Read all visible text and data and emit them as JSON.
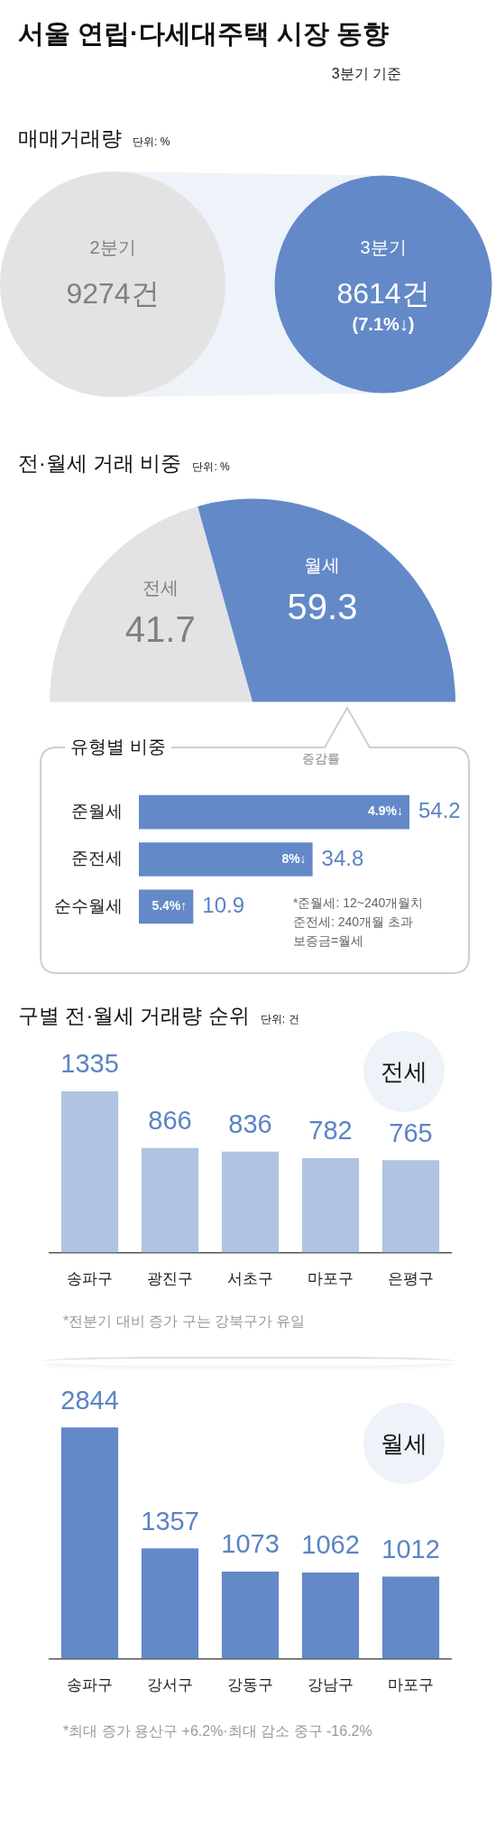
{
  "chart_data": [
    {
      "type": "other",
      "title": "서울 연립·다세대주택 시장 동향",
      "subtitle": "3분기 기준"
    },
    {
      "type": "other",
      "title": "매매거래량",
      "subtitle": "단위: %",
      "categories": [
        "2분기",
        "3분기"
      ],
      "values": [
        9274,
        8614
      ],
      "value_labels": [
        "9274건",
        "8614건"
      ],
      "colors": [
        "#e3e3e3",
        "#6389c8"
      ],
      "annotations": [
        {
          "text": "(7.1%↓)",
          "x": "3분기"
        }
      ]
    },
    {
      "type": "pie",
      "title": "전·월세 거래 비중",
      "subtitle": "단위: %",
      "categories": [
        "전세",
        "월세"
      ],
      "values": [
        41.7,
        59.3
      ],
      "colors": [
        "#e3e3e3",
        "#6389c8"
      ],
      "data_labels": true
    },
    {
      "type": "bar",
      "orientation": "horizontal",
      "title": "유형별 비중",
      "categories": [
        "준월세",
        "준전세",
        "순수월세"
      ],
      "values": [
        54.2,
        34.8,
        10.9
      ],
      "color": "#6389c8",
      "data_labels": true,
      "tick_labels": "y",
      "annotations": [
        "증감률",
        {
          "text": "4.9%↓",
          "y": "준월세"
        },
        {
          "text": "8%↓",
          "y": "준전세"
        },
        {
          "text": "5.4%↑",
          "y": "순수월세"
        },
        "*준월세: 12~240개월치\n준전세: 240개월 초과\n보증금=월세"
      ]
    },
    {
      "type": "bar",
      "title": "구별 전·월세 거래량 순위",
      "subtitle": "단위: 건",
      "categories": [
        "송파구",
        "광진구",
        "서초구",
        "마포구",
        "은평구"
      ],
      "series": [
        {
          "name": "전세",
          "color": "#afc3e3",
          "values": [
            1335,
            866,
            836,
            782,
            765
          ]
        }
      ],
      "legend": "top right",
      "data_labels": true,
      "tick_labels": "x",
      "annotations": [
        "*전분기 대비 증가 구는 강북구가 유일"
      ]
    },
    {
      "type": "bar",
      "categories": [
        "송파구",
        "강서구",
        "강동구",
        "강남구",
        "마포구"
      ],
      "series": [
        {
          "name": "월세",
          "color": "#6389c8",
          "values": [
            2844,
            1357,
            1073,
            1062,
            1012
          ]
        }
      ],
      "legend": "top right",
      "data_labels": true,
      "tick_labels": "x",
      "annotations": [
        "*최대 증가 용산구 +6.2%·최대 감소 중구 -16.2%"
      ]
    }
  ]
}
